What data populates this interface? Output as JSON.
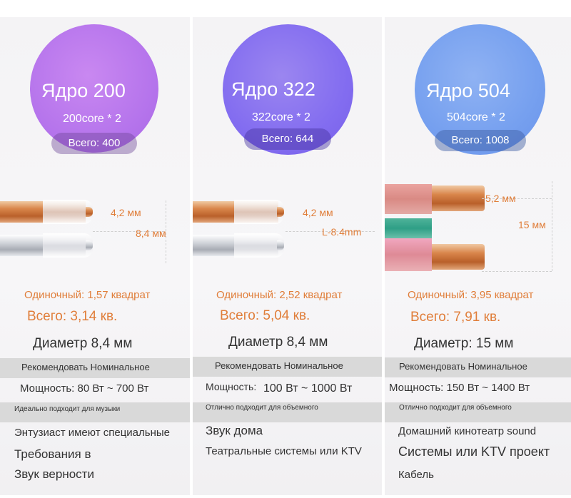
{
  "colors": {
    "orange_text": "#e07e3a",
    "purple": "#b675ec",
    "violet": "#836df0",
    "blue": "#76a0ef"
  },
  "panels": [
    {
      "core_title": "Ядро 200",
      "core_sub": "200core * 2",
      "core_total": "Всего: 400",
      "dim_inner": "4,2 мм",
      "dim_outer": "8,4 мм",
      "single": "Одиночный: 1,57 квадрат",
      "total": "Всего: 3,14 кв.",
      "diameter": "Диаметр 8,4 мм",
      "recommend": "Рекомендовать Номинальное",
      "power": "Мощность: 80 Вт ~ 700 Вт",
      "ideal": "Идеально подходит для музыки",
      "lines": [
        "Энтузиаст имеют специальные",
        "Требования в",
        "Звук верности"
      ]
    },
    {
      "core_title": "Ядро 322",
      "core_sub": "322core * 2",
      "core_total": "Всего: 644",
      "dim_inner": "4,2 мм",
      "dim_outer": "L-8.4mm",
      "single": "Одиночный: 2,52 квадрат",
      "total": "Всего: 5,04 кв.",
      "diameter": "Диаметр 8,4 мм",
      "recommend": "Рекомендовать Номинальное",
      "power_label": "Мощность:",
      "power_value": "100 Вт ~ 1000 Вт",
      "ideal": "Отлично подходит для объемного",
      "lines": [
        "Звук дома",
        "Театральные системы или KTV"
      ]
    },
    {
      "core_title": "Ядро 504",
      "core_sub": "504core * 2",
      "core_total": "Всего: 1008",
      "dim_inner": "5,2 мм",
      "dim_outer": "15 мм",
      "single": "Одиночный: 3,95 квадрат",
      "total": "Всего: 7,91 кв.",
      "diameter": "Диаметр: 15 мм",
      "recommend": "Рекомендовать Номинальное",
      "power": "Мощность: 150 Вт ~ 1400 Вт",
      "ideal": "Отлично подходит для объемного",
      "lines": [
        "Домашний кинотеатр sound",
        "Системы или KTV проект",
        "Кабель"
      ]
    }
  ]
}
